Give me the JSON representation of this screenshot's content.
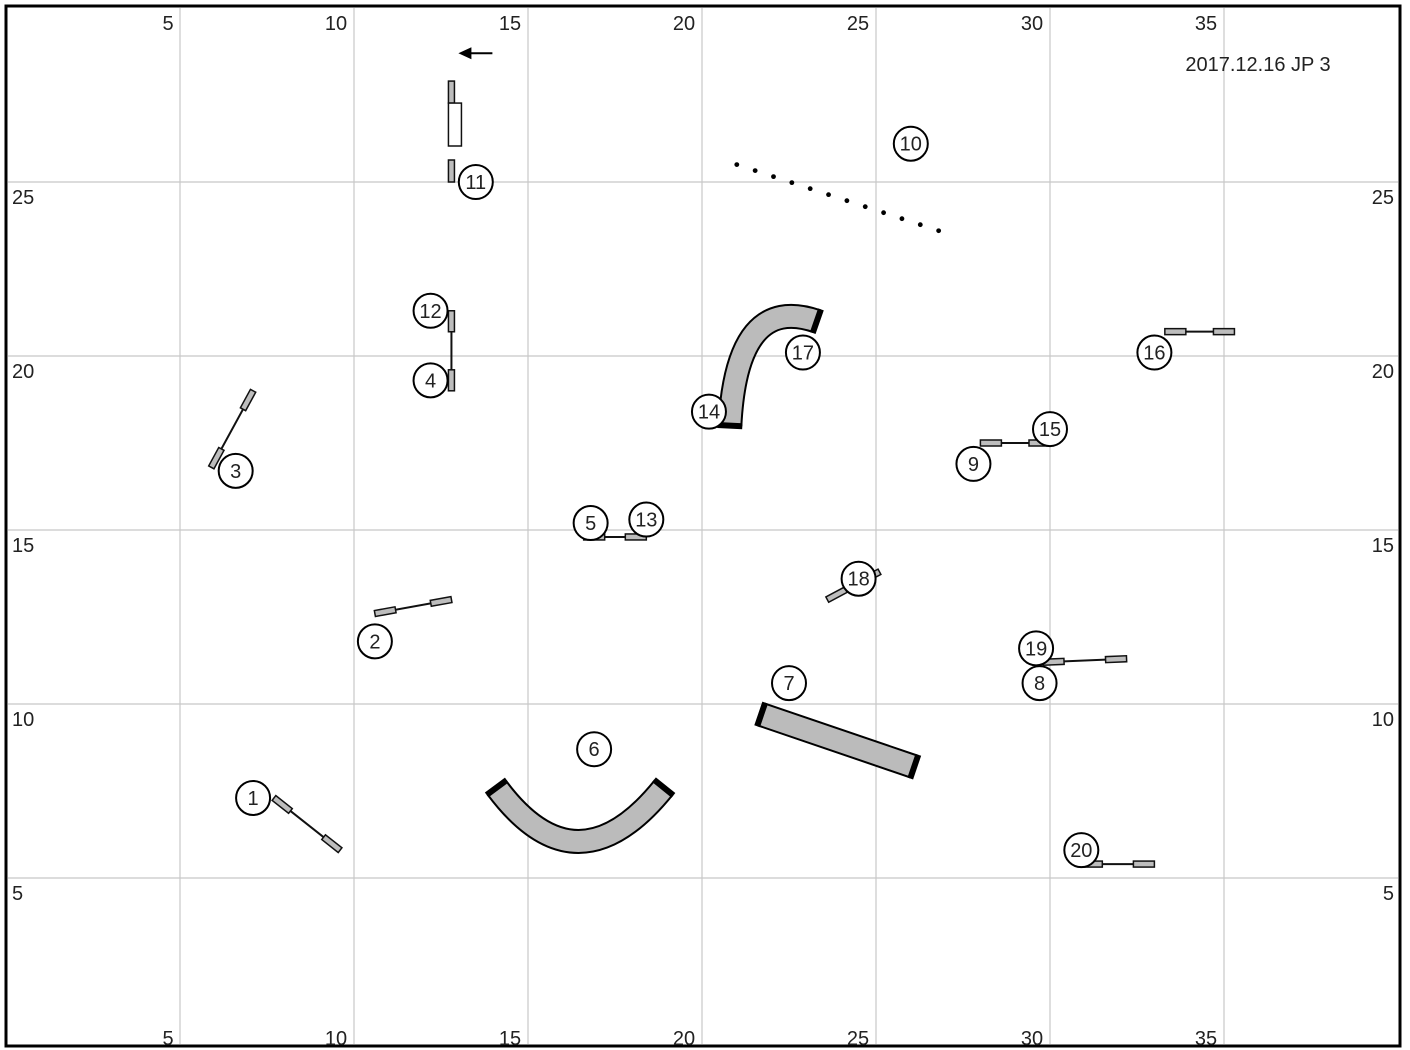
{
  "title": "2017.12.16 JP 3",
  "x_ticks": [
    "5",
    "10",
    "15",
    "20",
    "25",
    "30",
    "35"
  ],
  "y_ticks": [
    "25",
    "20",
    "15",
    "10",
    "5"
  ],
  "grid": {
    "x_min": 0,
    "x_max": 40,
    "y_min": 0,
    "y_max": 30
  },
  "colors": {
    "tunnel": "#bbbbbb",
    "wing": "#bdbdbd",
    "grid": "#c8c8c8",
    "border": "#000000"
  },
  "direction_arrow": {
    "icon": "arrow-left-icon",
    "at": [
      13,
      28.7
    ],
    "points_to": "left"
  },
  "jumps": [
    {
      "number": "1",
      "from": [
        7.7,
        7.3
      ],
      "to": [
        9.6,
        5.8
      ]
    },
    {
      "number": "2",
      "from": [
        10.6,
        12.6
      ],
      "to": [
        12.8,
        13.0
      ]
    },
    {
      "number": "3",
      "from": [
        5.9,
        16.8
      ],
      "to": [
        7.1,
        19.0
      ]
    },
    {
      "number": "4",
      "from": [
        12.8,
        19.0
      ],
      "to": [
        12.8,
        21.3
      ]
    },
    {
      "number": "5",
      "from": [
        16.6,
        14.8
      ],
      "to": [
        18.4,
        14.8
      ]
    },
    {
      "number": "9",
      "from": [
        28.0,
        17.5
      ],
      "to": [
        30.0,
        17.5
      ]
    },
    {
      "number": "16",
      "from": [
        33.3,
        20.7
      ],
      "to": [
        35.3,
        20.7
      ]
    },
    {
      "number": "18",
      "from": [
        23.6,
        13.0
      ],
      "to": [
        25.1,
        13.8
      ]
    },
    {
      "number": "8",
      "from": [
        29.8,
        11.2
      ],
      "to": [
        32.2,
        11.3
      ]
    },
    {
      "number": "20",
      "from": [
        30.9,
        5.4
      ],
      "to": [
        33.0,
        5.4
      ]
    }
  ],
  "tire": {
    "number": "11",
    "at": [
      12.8,
      25.0
    ],
    "to": [
      12.8,
      27.9
    ]
  },
  "weave_poles": {
    "number": "10",
    "from": [
      21.0,
      25.5
    ],
    "to": [
      26.8,
      23.6
    ],
    "count": 12
  },
  "tunnels": [
    {
      "number": "6",
      "shape": "curve",
      "points": [
        [
          14.1,
          7.6
        ],
        [
          16.4,
          4.5
        ],
        [
          18.9,
          7.6
        ]
      ]
    },
    {
      "number": "7",
      "shape": "straight",
      "points": [
        [
          21.7,
          9.7
        ],
        [
          26.1,
          8.2
        ]
      ]
    },
    {
      "number": "14",
      "shape": "curve",
      "points": [
        [
          20.8,
          18.0
        ],
        [
          21.0,
          21.8
        ],
        [
          23.3,
          21.0
        ]
      ]
    }
  ],
  "numbers": [
    {
      "label": "1",
      "at": [
        7.1,
        7.3
      ]
    },
    {
      "label": "2",
      "at": [
        10.6,
        11.8
      ]
    },
    {
      "label": "3",
      "at": [
        6.6,
        16.7
      ]
    },
    {
      "label": "4",
      "at": [
        12.2,
        19.3
      ]
    },
    {
      "label": "5",
      "at": [
        16.8,
        15.2
      ]
    },
    {
      "label": "6",
      "at": [
        16.9,
        8.7
      ]
    },
    {
      "label": "7",
      "at": [
        22.5,
        10.6
      ]
    },
    {
      "label": "8",
      "at": [
        29.7,
        10.6
      ]
    },
    {
      "label": "9",
      "at": [
        27.8,
        16.9
      ]
    },
    {
      "label": "10",
      "at": [
        26.0,
        26.1
      ]
    },
    {
      "label": "11",
      "at": [
        13.5,
        25.0
      ]
    },
    {
      "label": "12",
      "at": [
        12.2,
        21.3
      ]
    },
    {
      "label": "13",
      "at": [
        18.4,
        15.3
      ]
    },
    {
      "label": "14",
      "at": [
        20.2,
        18.4
      ]
    },
    {
      "label": "15",
      "at": [
        30.0,
        17.9
      ]
    },
    {
      "label": "16",
      "at": [
        33.0,
        20.1
      ]
    },
    {
      "label": "17",
      "at": [
        22.9,
        20.1
      ]
    },
    {
      "label": "18",
      "at": [
        24.5,
        13.6
      ]
    },
    {
      "label": "19",
      "at": [
        29.6,
        11.6
      ]
    },
    {
      "label": "20",
      "at": [
        30.9,
        5.8
      ]
    }
  ]
}
